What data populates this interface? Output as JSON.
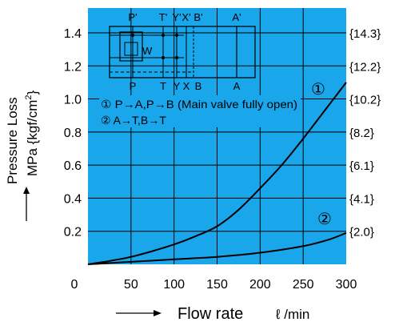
{
  "chart_data": {
    "type": "line",
    "background_color": "#1aa6ea",
    "grid": true,
    "xlabel": "Flow rate",
    "xunit": "ℓ /min",
    "ylabel": "Pressure Loss",
    "yunit_prefix": "MPa {kgf/cm",
    "yunit_sup": "2",
    "yunit_suffix": "}",
    "xlim": [
      0,
      300
    ],
    "ylim": [
      0,
      1.55
    ],
    "x_ticks": [
      "0",
      "50",
      "100",
      "150",
      "200",
      "250",
      "300"
    ],
    "y_ticks": [
      "0.2",
      "0.4",
      "0.6",
      "0.8",
      "1.0",
      "1.2",
      "1.4"
    ],
    "y_ticks_right": [
      "{2.0}",
      "{4.1}",
      "{6.1}",
      "{8.2}",
      "{10.2}",
      "{12.2}",
      "{14.3}"
    ],
    "series": [
      {
        "name": "①",
        "x": [
          0,
          25,
          50,
          75,
          100,
          125,
          150,
          175,
          200,
          225,
          250,
          275,
          300
        ],
        "y": [
          0,
          0.02,
          0.045,
          0.08,
          0.12,
          0.17,
          0.23,
          0.33,
          0.46,
          0.6,
          0.76,
          0.93,
          1.1
        ]
      },
      {
        "name": "②",
        "x": [
          0,
          50,
          100,
          150,
          200,
          250,
          280,
          300
        ],
        "y": [
          0,
          0.015,
          0.03,
          0.045,
          0.07,
          0.11,
          0.15,
          0.19
        ]
      }
    ],
    "legend": [
      "① P→A,P→B (Main valve fully open)",
      "② A→T,B→T"
    ],
    "schematic_labels": {
      "top": [
        "P'",
        "T'",
        "Y'",
        "X'",
        "B'",
        "A'"
      ],
      "bottom": [
        "P",
        "T",
        "Y",
        "X",
        "B",
        "A"
      ],
      "inner": "W"
    }
  }
}
